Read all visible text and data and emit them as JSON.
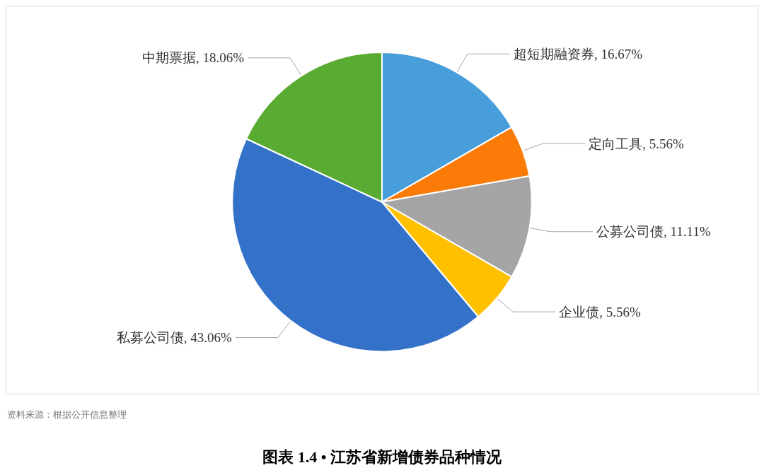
{
  "chart_data": {
    "type": "pie",
    "title": "图表 1.4 • 江苏省新增债券品种情况",
    "categories": [
      "超短期融资券",
      "定向工具",
      "公募公司债",
      "企业债",
      "私募公司债",
      "中期票据"
    ],
    "values": [
      16.67,
      5.56,
      11.11,
      5.56,
      43.06,
      18.06
    ],
    "colors": [
      "#479edb",
      "#fa7b08",
      "#a5a5a5",
      "#ffc000",
      "#3472c9",
      "#5aab32"
    ],
    "value_labels": [
      "16.67%",
      "5.56%",
      "11.11%",
      "5.56%",
      "43.06%",
      "18.06%"
    ],
    "annotations": [
      "资料来源：根据公开信息整理"
    ],
    "legend": false
  }
}
